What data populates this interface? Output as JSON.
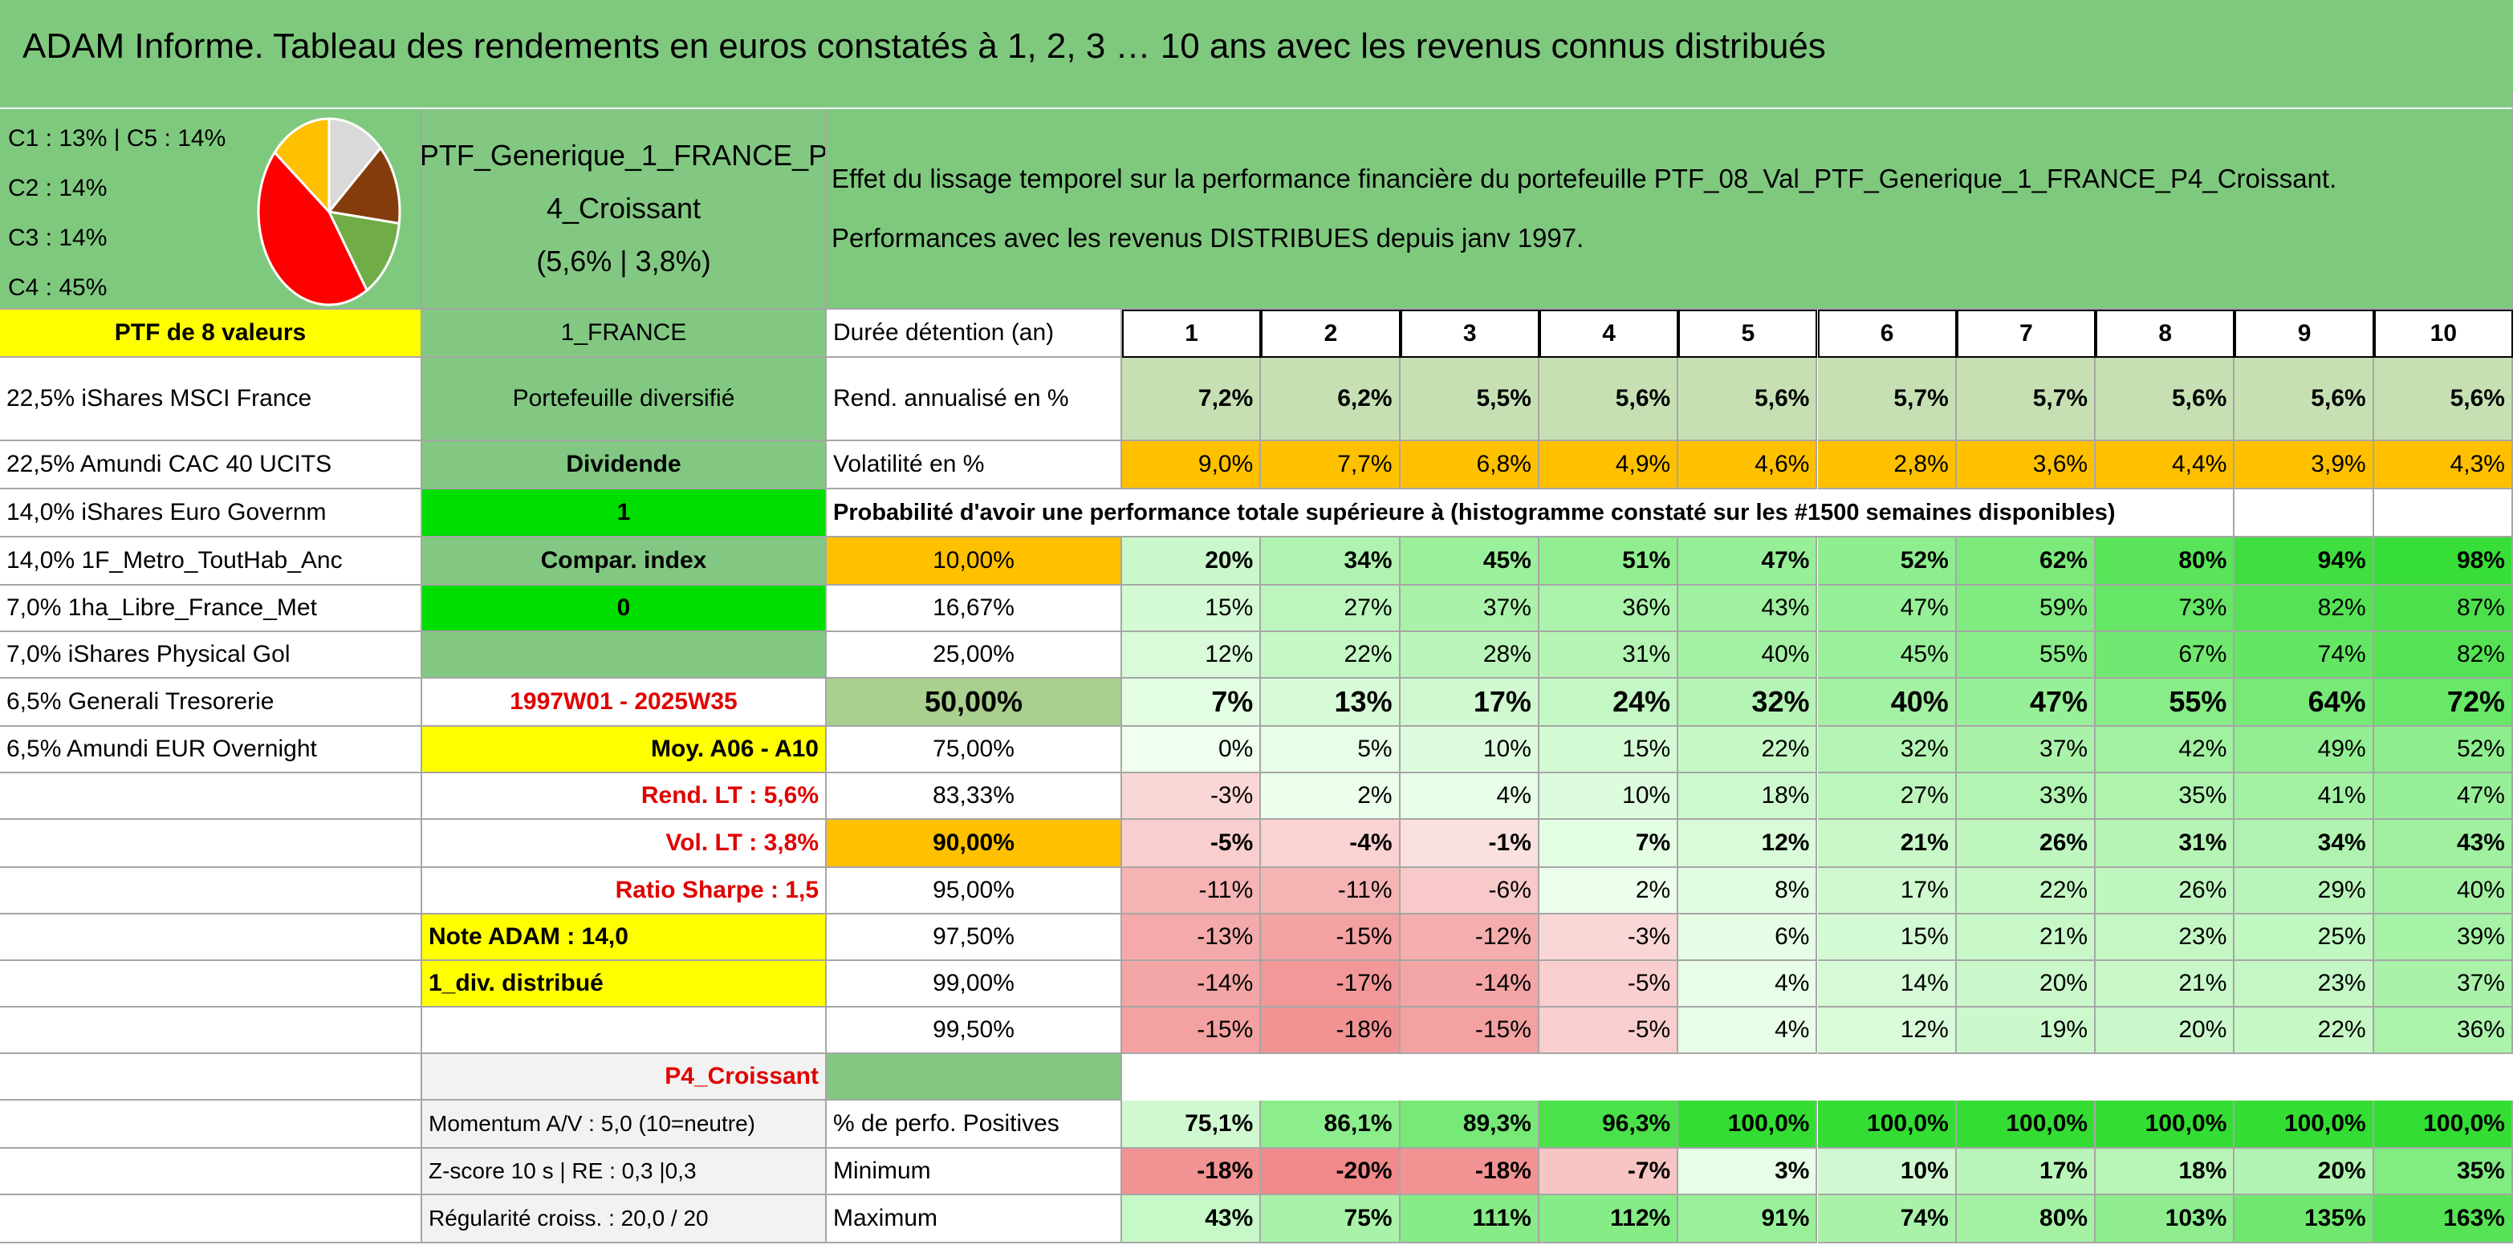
{
  "title": "ADAM Informe. Tableau des rendements en euros constatés à 1, 2, 3 … 10 ans avec les revenus connus distribués",
  "pie": {
    "type": "pie",
    "legend": [
      "C1 : 13% | C5 : 14%",
      "C2 : 14%",
      "C3 : 14%",
      "C4 : 45%"
    ],
    "values": [
      13,
      14,
      14,
      45,
      14
    ],
    "colors": [
      "#d9d9d9",
      "#843c0c",
      "#70ad47",
      "#ff0000",
      "#ffc000"
    ]
  },
  "portfolio_header": [
    "PTF_Generique_1_FRANCE_P",
    "4_Croissant",
    "(5,6% | 3,8%)"
  ],
  "description": [
    "Effet du lissage temporel sur la performance financière du portefeuille PTF_08_Val_PTF_Generique_1_FRANCE_P4_Croissant.",
    "Performances avec les revenus DISTRIBUES depuis janv 1997."
  ],
  "probability_note": "Probabilité d'avoir une performance totale supérieure à (histogramme constaté sur les #1500 semaines disponibles)",
  "rows": [
    {
      "holding": "PTF de 8 valeurs",
      "info": "1_FRANCE",
      "label": "Durée détention (an)",
      "values": [
        1,
        2,
        3,
        4,
        5,
        6,
        7,
        8,
        9,
        10
      ]
    },
    {
      "holding": "22,5% iShares MSCI France",
      "info": "Portefeuille diversifié",
      "label": "Rend. annualisé en %",
      "values": [
        "7,2%",
        "6,2%",
        "5,5%",
        "5,6%",
        "5,6%",
        "5,7%",
        "5,7%",
        "5,6%",
        "5,6%",
        "5,6%"
      ]
    },
    {
      "holding": "22,5% Amundi CAC 40 UCITS",
      "info": "Dividende",
      "label": "Volatilité en %",
      "values": [
        "9,0%",
        "7,7%",
        "6,8%",
        "4,9%",
        "4,6%",
        "2,8%",
        "3,6%",
        "4,4%",
        "3,9%",
        "4,3%"
      ]
    },
    {
      "holding": "14,0% iShares Euro Governm",
      "info": "1"
    },
    {
      "holding": "14,0% 1F_Metro_ToutHab_Anc",
      "info": "Compar. index",
      "label": "10,00%",
      "values": [
        "20%",
        "34%",
        "45%",
        "51%",
        "47%",
        "52%",
        "62%",
        "80%",
        "94%",
        "98%"
      ]
    },
    {
      "holding": "7,0% 1ha_Libre_France_Met",
      "info": "0",
      "label": "16,67%",
      "values": [
        "15%",
        "27%",
        "37%",
        "36%",
        "43%",
        "47%",
        "59%",
        "73%",
        "82%",
        "87%"
      ]
    },
    {
      "holding": "7,0% iShares Physical Gol",
      "label": "25,00%",
      "values": [
        "12%",
        "22%",
        "28%",
        "31%",
        "40%",
        "45%",
        "55%",
        "67%",
        "74%",
        "82%"
      ]
    },
    {
      "holding": "6,5% Generali Tresorerie",
      "info": "1997W01 - 2025W35",
      "label": "50,00%",
      "values": [
        "7%",
        "13%",
        "17%",
        "24%",
        "32%",
        "40%",
        "47%",
        "55%",
        "64%",
        "72%"
      ]
    },
    {
      "holding": "6,5% Amundi EUR Overnight",
      "info": "Moy. A06 - A10",
      "label": "75,00%",
      "values": [
        "0%",
        "5%",
        "10%",
        "15%",
        "22%",
        "32%",
        "37%",
        "42%",
        "49%",
        "52%"
      ]
    },
    {
      "info": "Rend. LT : 5,6%",
      "label": "83,33%",
      "values": [
        "-3%",
        "2%",
        "4%",
        "10%",
        "18%",
        "27%",
        "33%",
        "35%",
        "41%",
        "47%"
      ]
    },
    {
      "info": "Vol. LT : 3,8%",
      "label": "90,00%",
      "values": [
        "-5%",
        "-4%",
        "-1%",
        "7%",
        "12%",
        "21%",
        "26%",
        "31%",
        "34%",
        "43%"
      ]
    },
    {
      "info": "Ratio Sharpe : 1,5",
      "label": "95,00%",
      "values": [
        "-11%",
        "-11%",
        "-6%",
        "2%",
        "8%",
        "17%",
        "22%",
        "26%",
        "29%",
        "40%"
      ]
    },
    {
      "info": "Note ADAM : 14,0",
      "label": "97,50%",
      "values": [
        "-13%",
        "-15%",
        "-12%",
        "-3%",
        "6%",
        "15%",
        "21%",
        "23%",
        "25%",
        "39%"
      ]
    },
    {
      "info": "1_div. distribué",
      "label": "99,00%",
      "values": [
        "-14%",
        "-17%",
        "-14%",
        "-5%",
        "4%",
        "14%",
        "20%",
        "21%",
        "23%",
        "37%"
      ]
    },
    {
      "label": "99,50%",
      "values": [
        "-15%",
        "-18%",
        "-15%",
        "-5%",
        "4%",
        "12%",
        "19%",
        "20%",
        "22%",
        "36%"
      ]
    },
    {
      "info": "P4_Croissant"
    },
    {
      "info": "Momentum A/V : 5,0 (10=neutre)",
      "label": "% de perfo. Positives",
      "values": [
        "75,1%",
        "86,1%",
        "89,3%",
        "96,3%",
        "100,0%",
        "100,0%",
        "100,0%",
        "100,0%",
        "100,0%",
        "100,0%"
      ]
    },
    {
      "info": "Z-score 10 s | RE : 0,3 |0,3",
      "label": "Minimum",
      "values": [
        "-18%",
        "-20%",
        "-18%",
        "-7%",
        "3%",
        "10%",
        "17%",
        "18%",
        "20%",
        "35%"
      ]
    },
    {
      "info": "Régularité croiss. : 20,0 / 20",
      "label": "Maximum",
      "values": [
        "43%",
        "75%",
        "111%",
        "112%",
        "91%",
        "74%",
        "80%",
        "103%",
        "135%",
        "163%"
      ]
    }
  ]
}
